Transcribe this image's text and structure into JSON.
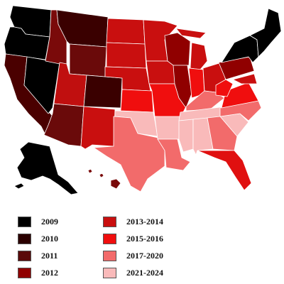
{
  "map": {
    "legend": [
      {
        "label": "2009",
        "color": "#000000"
      },
      {
        "label": "2010",
        "color": "#2b0000"
      },
      {
        "label": "2011",
        "color": "#5a0a0a"
      },
      {
        "label": "2012",
        "color": "#900000"
      },
      {
        "label": "2013-2014",
        "color": "#c90f0f"
      },
      {
        "label": "2015-2016",
        "color": "#f00e0e"
      },
      {
        "label": "2017-2020",
        "color": "#f26b6b"
      },
      {
        "label": "2021-2024",
        "color": "#f9baba"
      }
    ],
    "states": [
      {
        "id": "WA",
        "color": "#000000"
      },
      {
        "id": "OR",
        "color": "#000000"
      },
      {
        "id": "CA",
        "color": "#4a0000"
      },
      {
        "id": "NV",
        "color": "#000000"
      },
      {
        "id": "ID",
        "color": "#7a0a0a"
      },
      {
        "id": "MT",
        "color": "#3a0000"
      },
      {
        "id": "WY",
        "color": "#6a0a0a"
      },
      {
        "id": "UT",
        "color": "#c00f0f"
      },
      {
        "id": "AZ",
        "color": "#6a0a0a"
      },
      {
        "id": "CO",
        "color": "#3a0000"
      },
      {
        "id": "NM",
        "color": "#c90f0f"
      },
      {
        "id": "ND",
        "color": "#c90f0f"
      },
      {
        "id": "SD",
        "color": "#c90f0f"
      },
      {
        "id": "NE",
        "color": "#c90f0f"
      },
      {
        "id": "KS",
        "color": "#f00e0e"
      },
      {
        "id": "OK",
        "color": "#f9baba"
      },
      {
        "id": "TX",
        "color": "#f26b6b"
      },
      {
        "id": "MN",
        "color": "#c90f0f"
      },
      {
        "id": "IA",
        "color": "#c90f0f"
      },
      {
        "id": "MO",
        "color": "#f00e0e"
      },
      {
        "id": "AR",
        "color": "#f9baba"
      },
      {
        "id": "LA",
        "color": "#f26b6b"
      },
      {
        "id": "WI",
        "color": "#900000"
      },
      {
        "id": "IL",
        "color": "#900000"
      },
      {
        "id": "MI",
        "color": "#c90f0f"
      },
      {
        "id": "IN",
        "color": "#f00e0e"
      },
      {
        "id": "OH",
        "color": "#c90f0f"
      },
      {
        "id": "KY",
        "color": "#f26b6b"
      },
      {
        "id": "TN",
        "color": "#f9baba"
      },
      {
        "id": "MS",
        "color": "#f9baba"
      },
      {
        "id": "AL",
        "color": "#f9baba"
      },
      {
        "id": "GA",
        "color": "#f26b6b"
      },
      {
        "id": "FL",
        "color": "#e01010"
      },
      {
        "id": "SC",
        "color": "#f9baba"
      },
      {
        "id": "NC",
        "color": "#f26b6b"
      },
      {
        "id": "VA",
        "color": "#f00e0e"
      },
      {
        "id": "WV",
        "color": "#f00e0e"
      },
      {
        "id": "PA",
        "color": "#900000"
      },
      {
        "id": "NY",
        "color": "#000000"
      },
      {
        "id": "NE-states",
        "color": "#000000"
      },
      {
        "id": "MD",
        "color": "#c90f0f"
      },
      {
        "id": "AK",
        "color": "#000000"
      },
      {
        "id": "HI",
        "color": "#7a0a0a"
      }
    ]
  }
}
